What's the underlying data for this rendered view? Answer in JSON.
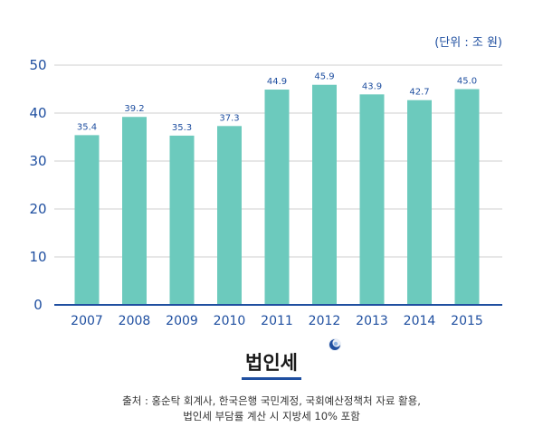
{
  "chart_data": {
    "type": "bar",
    "title": "법인세",
    "unit_label": "(단위 : 조 원)",
    "categories": [
      "2007",
      "2008",
      "2009",
      "2010",
      "2011",
      "2012",
      "2013",
      "2014",
      "2015"
    ],
    "values": [
      35.4,
      39.2,
      35.3,
      37.3,
      44.9,
      45.9,
      43.9,
      42.7,
      45.0
    ],
    "value_labels": [
      "35.4",
      "39.2",
      "35.3",
      "37.3",
      "44.9",
      "45.9",
      "43.9",
      "42.7",
      "45.0"
    ],
    "yticks": [
      "0",
      "10",
      "20",
      "30",
      "40",
      "50"
    ],
    "ylim": [
      0,
      50
    ],
    "grid": true,
    "colors": {
      "bar": "#6ccabd",
      "axis": "#1f4fa0",
      "text": "#1f4fa0"
    }
  },
  "source": {
    "line1": "출처 : 홍순탁 회계사, 한국은행 국민계정, 국회예산정책처 자료 활용,",
    "line2": "법인세 부담률 계산 시 지방세 10% 포함"
  }
}
